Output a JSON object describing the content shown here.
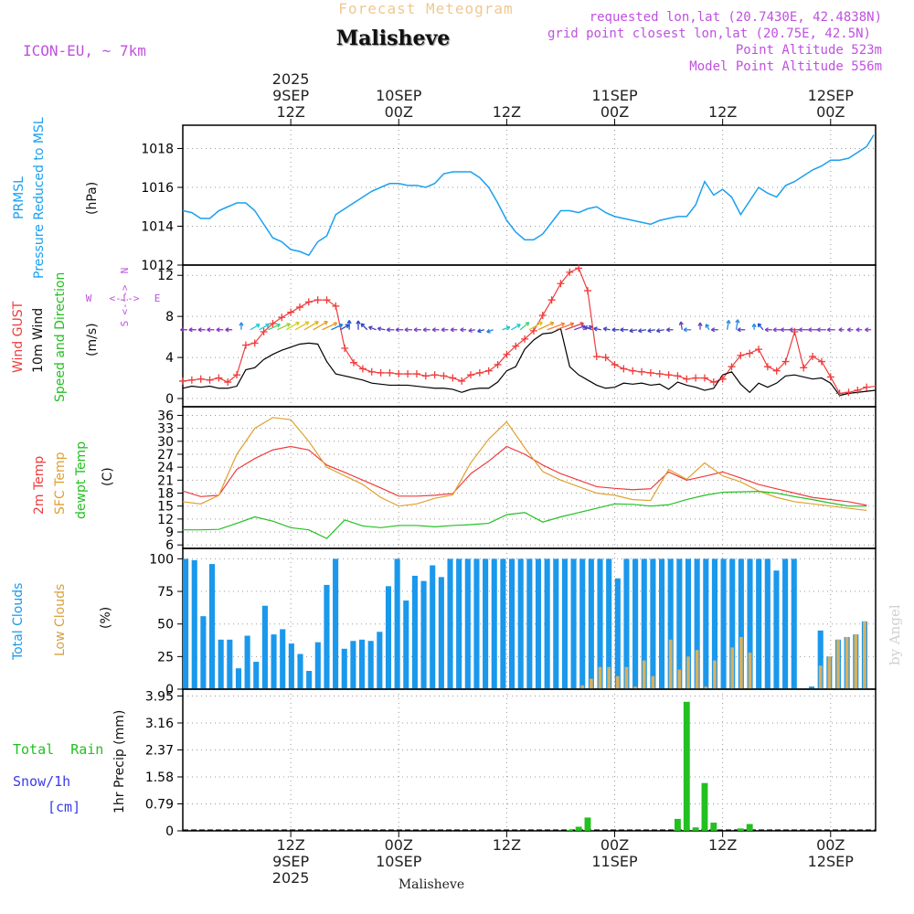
{
  "header": {
    "subtitle": "Forecast Meteogram",
    "title": "Malisheve",
    "model": "ICON-EU, ~ 7km",
    "requested": "requested lon,lat (20.7430E, 42.4838N)",
    "gridpoint": "grid point closest lon,lat (20.75E, 42.5N)",
    "point_alt": "Point Altitude 523m",
    "model_alt": "Model Point Altitude 556m",
    "footer": "Malisheve",
    "credit": "by Angel"
  },
  "colors": {
    "pressure": "#1aa0f0",
    "gust": "#f03c3c",
    "wind": "#000000",
    "temp": "#f03c3c",
    "sfc": "#e0a030",
    "dew": "#22c020",
    "total_cloud": "#1a98ec",
    "low_cloud": "#d8b060",
    "rain": "#22c020",
    "snow": "#3a3ae8",
    "violet": "#c050e0"
  },
  "time_axis": {
    "top_labels": [
      {
        "x_h": 12,
        "lines": [
          "2025",
          "9SEP",
          "12Z"
        ]
      },
      {
        "x_h": 24,
        "lines": [
          "10SEP",
          "00Z"
        ]
      },
      {
        "x_h": 36,
        "lines": [
          "12Z"
        ]
      },
      {
        "x_h": 48,
        "lines": [
          "11SEP",
          "00Z"
        ]
      },
      {
        "x_h": 60,
        "lines": [
          "12Z"
        ]
      },
      {
        "x_h": 72,
        "lines": [
          "12SEP",
          "00Z"
        ]
      }
    ],
    "bottom_labels": [
      {
        "x_h": 12,
        "lines": [
          "12Z",
          "9SEP",
          "2025"
        ]
      },
      {
        "x_h": 24,
        "lines": [
          "00Z",
          "10SEP"
        ]
      },
      {
        "x_h": 36,
        "lines": [
          "12Z"
        ]
      },
      {
        "x_h": 48,
        "lines": [
          "00Z",
          "11SEP"
        ]
      },
      {
        "x_h": 60,
        "lines": [
          "12Z"
        ]
      },
      {
        "x_h": 72,
        "lines": [
          "00Z",
          "12SEP"
        ]
      }
    ]
  },
  "labels": {
    "pressure": [
      "PRMSL",
      "Pressure Reduced to MSL"
    ],
    "pressure_unit": "(hPa)",
    "wind": [
      "Wind GUST",
      "10m Wind",
      "Speed and Direction"
    ],
    "wind_unit": "(m/s)",
    "compass": {
      "n": "N",
      "s": "S",
      "w": "W",
      "e": "E",
      "arrows": "<-!->"
    },
    "temp": [
      "2m Temp",
      "SFC Temp",
      "dewpt Temp"
    ],
    "temp_unit": "(C)",
    "cloud": [
      "Total Clouds",
      "Low Clouds"
    ],
    "cloud_unit": "(%)",
    "precip_axis": "1hr Precip (mm)",
    "total_rain": "Total  Rain",
    "snow": "Snow/1h",
    "snow_unit": "[cm]"
  },
  "chart_data": [
    {
      "type": "line",
      "name": "Pressure Reduced to MSL",
      "ylabel": "hPa",
      "ylim": [
        1012,
        1019.2
      ],
      "yticks": [
        1012,
        1014,
        1016,
        1018
      ],
      "xlim_h": [
        0,
        77
      ],
      "x": [
        0,
        1,
        2,
        3,
        4,
        5,
        6,
        7,
        8,
        9,
        10,
        11,
        12,
        13,
        14,
        15,
        16,
        17,
        18,
        19,
        20,
        21,
        22,
        23,
        24,
        25,
        26,
        27,
        28,
        29,
        30,
        31,
        32,
        33,
        34,
        35,
        36,
        37,
        38,
        39,
        40,
        41,
        42,
        43,
        44,
        45,
        46,
        47,
        48,
        49,
        50,
        51,
        52,
        53,
        54,
        55,
        56,
        57,
        58,
        59,
        60,
        61,
        62,
        63,
        64,
        65,
        66,
        67,
        68,
        69,
        70,
        71,
        72,
        73,
        74,
        75,
        76
      ],
      "values": [
        1014.8,
        1014.7,
        1014.4,
        1014.4,
        1014.8,
        1015.0,
        1015.2,
        1015.2,
        1014.8,
        1014.1,
        1013.4,
        1013.2,
        1012.8,
        1012.7,
        1012.5,
        1013.2,
        1013.5,
        1014.6,
        1014.9,
        1015.2,
        1015.5,
        1015.8,
        1016.0,
        1016.2,
        1016.2,
        1016.1,
        1016.1,
        1016.0,
        1016.2,
        1016.7,
        1016.8,
        1016.8,
        1016.8,
        1016.5,
        1016.0,
        1015.2,
        1014.3,
        1013.7,
        1013.3,
        1013.3,
        1013.6,
        1014.2,
        1014.8,
        1014.8,
        1014.7,
        1014.9,
        1015.0,
        1014.7,
        1014.5,
        1014.4,
        1014.3,
        1014.2,
        1014.1,
        1014.3,
        1014.4,
        1014.5,
        1014.5,
        1015.1,
        1016.3,
        1015.6,
        1015.9,
        1015.5,
        1014.6,
        1015.3,
        1016.0,
        1015.7,
        1015.5,
        1016.1,
        1016.3,
        1016.6,
        1016.9,
        1017.1,
        1017.4,
        1017.4,
        1017.5,
        1017.8,
        1018.1
      ]
    },
    {
      "type": "line",
      "name": "Wind GUST and 10m Wind Speed",
      "ylabel": "m/s",
      "ylim": [
        -0.8,
        13
      ],
      "yticks": [
        0,
        4,
        8,
        12
      ],
      "xlim_h": [
        0,
        77
      ],
      "x": [
        0,
        1,
        2,
        3,
        4,
        5,
        6,
        7,
        8,
        9,
        10,
        11,
        12,
        13,
        14,
        15,
        16,
        17,
        18,
        19,
        20,
        21,
        22,
        23,
        24,
        25,
        26,
        27,
        28,
        29,
        30,
        31,
        32,
        33,
        34,
        35,
        36,
        37,
        38,
        39,
        40,
        41,
        42,
        43,
        44,
        45,
        46,
        47,
        48,
        49,
        50,
        51,
        52,
        53,
        54,
        55,
        56,
        57,
        58,
        59,
        60,
        61,
        62,
        63,
        64,
        65,
        66,
        67,
        68,
        69,
        70,
        71,
        72,
        73,
        74,
        75,
        76
      ],
      "series": [
        {
          "name": "Wind GUST",
          "values": [
            1.7,
            1.8,
            1.9,
            1.8,
            2.0,
            1.6,
            2.3,
            5.2,
            5.4,
            6.5,
            7.3,
            7.9,
            8.4,
            8.9,
            9.4,
            9.6,
            9.6,
            9.0,
            4.9,
            3.5,
            2.9,
            2.6,
            2.5,
            2.5,
            2.4,
            2.4,
            2.4,
            2.2,
            2.3,
            2.2,
            2.0,
            1.7,
            2.3,
            2.5,
            2.7,
            3.3,
            4.3,
            5.1,
            5.8,
            6.6,
            8.1,
            9.6,
            11.2,
            12.3,
            12.7,
            10.5,
            4.1,
            4.0,
            3.3,
            2.9,
            2.7,
            2.6,
            2.5,
            2.4,
            2.3,
            2.2,
            1.9,
            2.0,
            2.0,
            1.6,
            1.9,
            3.1,
            4.2,
            4.4,
            4.8,
            3.1,
            2.7,
            3.6,
            6.5,
            3.0,
            4.1,
            3.6,
            2.1,
            0.5,
            0.6,
            0.8,
            1.1
          ]
        },
        {
          "name": "10m Wind",
          "values": [
            1.0,
            1.2,
            1.1,
            1.2,
            1.0,
            1.0,
            1.2,
            2.8,
            3.0,
            3.8,
            4.3,
            4.7,
            5.0,
            5.3,
            5.4,
            5.3,
            3.6,
            2.4,
            2.2,
            2.0,
            1.8,
            1.5,
            1.4,
            1.3,
            1.3,
            1.3,
            1.2,
            1.1,
            1.0,
            1.0,
            0.9,
            0.6,
            0.9,
            1.0,
            1.0,
            1.6,
            2.7,
            3.1,
            4.8,
            5.7,
            6.3,
            6.4,
            6.8,
            3.1,
            2.3,
            1.8,
            1.3,
            1.0,
            1.1,
            1.5,
            1.4,
            1.5,
            1.3,
            1.4,
            0.9,
            1.6,
            1.3,
            1.1,
            0.8,
            1.0,
            2.3,
            2.6,
            1.4,
            0.6,
            1.5,
            1.1,
            1.5,
            2.2,
            2.3,
            2.1,
            1.9,
            2.0,
            1.5,
            0.3,
            0.5,
            0.6,
            0.7
          ]
        }
      ],
      "tail_h": [
        77
      ],
      "tail_values": {
        "Wind GUST": [
          1.2
        ],
        "10m Wind": [
          0.8
        ]
      }
    },
    {
      "type": "line",
      "name": "Temperature",
      "ylabel": "C",
      "ylim": [
        5.2,
        38
      ],
      "yticks": [
        6,
        9,
        12,
        15,
        18,
        21,
        24,
        27,
        30,
        33,
        36
      ],
      "xlim_h": [
        0,
        77
      ],
      "x": [
        0,
        2,
        4,
        6,
        8,
        10,
        12,
        14,
        16,
        18,
        20,
        22,
        24,
        26,
        28,
        30,
        32,
        34,
        36,
        38,
        40,
        42,
        44,
        46,
        48,
        50,
        52,
        54,
        56,
        58,
        60,
        62,
        64,
        66,
        68,
        70,
        72,
        74,
        76
      ],
      "series": [
        {
          "name": "2m Temp",
          "values": [
            18.5,
            17.2,
            17.5,
            23.5,
            26.0,
            28.0,
            28.8,
            28.0,
            24.5,
            22.8,
            21.0,
            19.2,
            17.3,
            17.3,
            17.5,
            17.9,
            22.5,
            25.4,
            28.8,
            27.0,
            24.5,
            22.5,
            21.0,
            19.5,
            19.1,
            18.8,
            19.0,
            22.9,
            21.0,
            21.9,
            22.9,
            21.5,
            20.0,
            19.0,
            18.0,
            17.0,
            16.5,
            16.0,
            15.2
          ]
        },
        {
          "name": "SFC Temp",
          "values": [
            16.0,
            15.5,
            17.5,
            27.0,
            33.0,
            35.5,
            35.0,
            30.0,
            24.0,
            22.0,
            20.0,
            17.0,
            15.0,
            15.5,
            16.8,
            17.6,
            25.0,
            30.5,
            34.5,
            28.5,
            23.0,
            21.0,
            19.5,
            18.0,
            17.5,
            16.5,
            16.3,
            23.5,
            21.2,
            25.0,
            22.0,
            20.6,
            18.5,
            17.0,
            16.0,
            15.5,
            15.0,
            14.5,
            14.0
          ]
        },
        {
          "name": "dewpt Temp",
          "values": [
            9.5,
            9.5,
            9.6,
            11.0,
            12.5,
            11.5,
            10.0,
            9.5,
            7.5,
            11.8,
            10.4,
            10.0,
            10.5,
            10.5,
            10.2,
            10.5,
            10.7,
            11.0,
            13.0,
            13.5,
            11.3,
            12.5,
            13.5,
            14.5,
            15.5,
            15.4,
            15.0,
            15.3,
            16.5,
            17.5,
            18.2,
            18.3,
            18.4,
            18.0,
            17.2,
            16.5,
            15.7,
            15.0,
            15.0
          ]
        }
      ]
    },
    {
      "type": "bar",
      "name": "Clouds",
      "ylabel": "%",
      "ylim": [
        0,
        108
      ],
      "yticks": [
        0,
        25,
        50,
        75,
        100
      ],
      "xlim_h": [
        0,
        77
      ],
      "series": [
        {
          "name": "Total Clouds",
          "values": [
            100,
            99,
            56,
            96,
            38,
            38,
            16,
            41,
            21,
            64,
            42,
            46,
            35,
            27,
            14,
            36,
            80,
            100,
            31,
            37,
            38,
            37,
            44,
            79,
            100,
            68,
            87,
            83,
            95,
            86,
            100,
            100,
            100,
            100,
            100,
            100,
            100,
            100,
            100,
            100,
            100,
            100,
            100,
            100,
            100,
            100,
            100,
            100,
            100,
            85,
            100,
            100,
            100,
            100,
            100,
            100,
            100,
            100,
            100,
            100,
            100,
            100,
            100,
            100,
            100,
            100,
            100,
            91,
            100,
            100,
            0,
            2,
            45,
            25,
            38,
            40,
            42,
            52,
            50,
            52
          ]
        },
        {
          "name": "Low Clouds",
          "values": [
            0,
            0,
            0,
            0,
            0,
            0,
            0,
            0,
            0,
            0,
            0,
            0,
            0,
            0,
            0,
            0,
            0,
            0,
            0,
            0,
            0,
            0,
            0,
            0,
            0,
            0,
            0,
            0,
            0,
            0,
            0,
            0,
            0,
            0,
            0,
            0,
            0,
            0,
            0,
            0,
            0,
            0,
            0,
            0,
            0,
            3,
            8,
            17,
            17,
            10,
            17,
            2,
            22,
            10,
            0,
            38,
            15,
            25,
            30,
            2,
            22,
            0,
            32,
            40,
            28,
            0,
            0,
            0,
            0,
            0,
            0,
            0,
            18,
            25,
            38,
            40,
            42,
            52,
            50,
            52
          ]
        }
      ],
      "x_start_h": -0.3,
      "x_step_h": 0.98
    },
    {
      "type": "bar",
      "name": "1hr Precip",
      "ylabel": "mm",
      "ylim": [
        0,
        4.15
      ],
      "yticks": [
        "0",
        "0.79",
        "1.58",
        "2.37",
        "3.16",
        "3.95"
      ],
      "xlim_h": [
        0,
        77
      ],
      "series": [
        {
          "name": "Total Rain",
          "x_h": [
            43,
            44,
            45,
            55,
            56,
            57,
            58,
            59,
            62,
            63
          ],
          "values": [
            0.03,
            0.12,
            0.39,
            0.35,
            3.78,
            0.1,
            1.4,
            0.24,
            0.07,
            0.2
          ]
        }
      ]
    }
  ]
}
